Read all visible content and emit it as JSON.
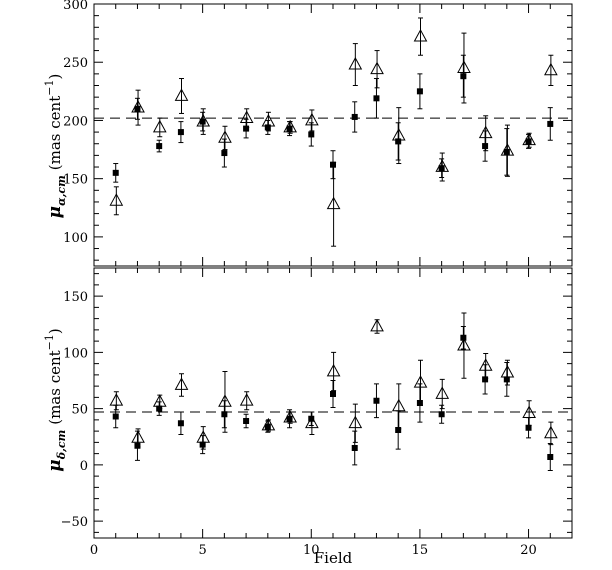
{
  "chart_data": [
    {
      "type": "scatter",
      "panel": "top",
      "ylabel_main": "μ",
      "ylabel_sub": "α,cm",
      "ylabel_unit": "(mas cent",
      "ylabel_exp": "−1",
      "ylabel_close": ")",
      "xlim": [
        0,
        22
      ],
      "ylim": [
        75,
        300
      ],
      "yticks": [
        100,
        150,
        200,
        250,
        300
      ],
      "reference_line": 202,
      "series": [
        {
          "marker": "filled-square",
          "points": [
            {
              "x": 1,
              "y": 155,
              "err": 8
            },
            {
              "x": 2,
              "y": 210,
              "err": 9
            },
            {
              "x": 3,
              "y": 178,
              "err": 5
            },
            {
              "x": 4,
              "y": 190,
              "err": 9
            },
            {
              "x": 5,
              "y": 199,
              "err": 8
            },
            {
              "x": 6,
              "y": 172,
              "err": 12
            },
            {
              "x": 7,
              "y": 193,
              "err": 8
            },
            {
              "x": 8,
              "y": 194,
              "err": 6
            },
            {
              "x": 9,
              "y": 193,
              "err": 6
            },
            {
              "x": 10,
              "y": 188,
              "err": 10
            },
            {
              "x": 11,
              "y": 162,
              "err": 12
            },
            {
              "x": 12,
              "y": 203,
              "err": 13
            },
            {
              "x": 13,
              "y": 219,
              "err": 17
            },
            {
              "x": 14,
              "y": 182,
              "err": 16
            },
            {
              "x": 15,
              "y": 225,
              "err": 15
            },
            {
              "x": 16,
              "y": 159,
              "err": 8
            },
            {
              "x": 17,
              "y": 238,
              "err": 18
            },
            {
              "x": 18,
              "y": 178,
              "err": 13
            },
            {
              "x": 19,
              "y": 173,
              "err": 20
            },
            {
              "x": 20,
              "y": 182,
              "err": 6
            },
            {
              "x": 21,
              "y": 197,
              "err": 14
            }
          ]
        },
        {
          "marker": "open-triangle",
          "points": [
            {
              "x": 1,
              "y": 131,
              "err": 12
            },
            {
              "x": 2,
              "y": 211,
              "err": 15
            },
            {
              "x": 3,
              "y": 194,
              "err": 8
            },
            {
              "x": 4,
              "y": 221,
              "err": 15
            },
            {
              "x": 5,
              "y": 199,
              "err": 11
            },
            {
              "x": 6,
              "y": 185,
              "err": 10
            },
            {
              "x": 7,
              "y": 202,
              "err": 8
            },
            {
              "x": 8,
              "y": 199,
              "err": 8
            },
            {
              "x": 9,
              "y": 194,
              "err": 5
            },
            {
              "x": 10,
              "y": 200,
              "err": 9
            },
            {
              "x": 11,
              "y": 128,
              "err": 36
            },
            {
              "x": 12,
              "y": 248,
              "err": 18
            },
            {
              "x": 13,
              "y": 244,
              "err": 16
            },
            {
              "x": 14,
              "y": 187,
              "err": 24
            },
            {
              "x": 15,
              "y": 272,
              "err": 16
            },
            {
              "x": 16,
              "y": 160,
              "err": 12
            },
            {
              "x": 17,
              "y": 245,
              "err": 30
            },
            {
              "x": 18,
              "y": 189,
              "err": 15
            },
            {
              "x": 19,
              "y": 174,
              "err": 22
            },
            {
              "x": 20,
              "y": 183,
              "err": 6
            },
            {
              "x": 21,
              "y": 243,
              "err": 13
            }
          ]
        }
      ]
    },
    {
      "type": "scatter",
      "panel": "bottom",
      "xlabel": "Field",
      "ylabel_main": "μ",
      "ylabel_sub": "δ,cm",
      "ylabel_unit": "(mas cent",
      "ylabel_exp": "−1",
      "ylabel_close": ")",
      "xlim": [
        0,
        22
      ],
      "ylim": [
        -65,
        175
      ],
      "xticks": [
        0,
        5,
        10,
        15,
        20
      ],
      "yticks": [
        -50,
        0,
        50,
        100,
        150
      ],
      "reference_line": 47,
      "series": [
        {
          "marker": "filled-square",
          "points": [
            {
              "x": 1,
              "y": 43,
              "err": 10
            },
            {
              "x": 2,
              "y": 17,
              "err": 13
            },
            {
              "x": 3,
              "y": 50,
              "err": 6
            },
            {
              "x": 4,
              "y": 37,
              "err": 10
            },
            {
              "x": 5,
              "y": 18,
              "err": 8
            },
            {
              "x": 6,
              "y": 45,
              "err": 12
            },
            {
              "x": 7,
              "y": 39,
              "err": 6
            },
            {
              "x": 8,
              "y": 34,
              "err": 5
            },
            {
              "x": 9,
              "y": 41,
              "err": 8
            },
            {
              "x": 10,
              "y": 41,
              "err": 6
            },
            {
              "x": 11,
              "y": 63,
              "err": 12
            },
            {
              "x": 12,
              "y": 15,
              "err": 15
            },
            {
              "x": 13,
              "y": 57,
              "err": 15
            },
            {
              "x": 14,
              "y": 31,
              "err": 17
            },
            {
              "x": 15,
              "y": 55,
              "err": 17
            },
            {
              "x": 16,
              "y": 45,
              "err": 8
            },
            {
              "x": 17,
              "y": 113,
              "err": 10
            },
            {
              "x": 18,
              "y": 76,
              "err": 13
            },
            {
              "x": 19,
              "y": 76,
              "err": 15
            },
            {
              "x": 20,
              "y": 33,
              "err": 9
            },
            {
              "x": 21,
              "y": 7,
              "err": 12
            }
          ]
        },
        {
          "marker": "open-triangle",
          "points": [
            {
              "x": 1,
              "y": 57,
              "err": 8
            },
            {
              "x": 2,
              "y": 24,
              "err": 8
            },
            {
              "x": 3,
              "y": 56,
              "err": 6
            },
            {
              "x": 4,
              "y": 71,
              "err": 10
            },
            {
              "x": 5,
              "y": 24,
              "err": 10
            },
            {
              "x": 6,
              "y": 56,
              "err": 27
            },
            {
              "x": 7,
              "y": 57,
              "err": 8
            },
            {
              "x": 8,
              "y": 35,
              "err": 5
            },
            {
              "x": 9,
              "y": 42,
              "err": 5
            },
            {
              "x": 10,
              "y": 37,
              "err": 10
            },
            {
              "x": 11,
              "y": 83,
              "err": 17
            },
            {
              "x": 12,
              "y": 37,
              "err": 17
            },
            {
              "x": 13,
              "y": 123,
              "err": 6
            },
            {
              "x": 14,
              "y": 52,
              "err": 20
            },
            {
              "x": 15,
              "y": 73,
              "err": 20
            },
            {
              "x": 16,
              "y": 63,
              "err": 13
            },
            {
              "x": 17,
              "y": 106,
              "err": 29
            },
            {
              "x": 18,
              "y": 88,
              "err": 11
            },
            {
              "x": 19,
              "y": 82,
              "err": 11
            },
            {
              "x": 20,
              "y": 46,
              "err": 11
            },
            {
              "x": 21,
              "y": 28,
              "err": 10
            }
          ]
        }
      ]
    }
  ]
}
